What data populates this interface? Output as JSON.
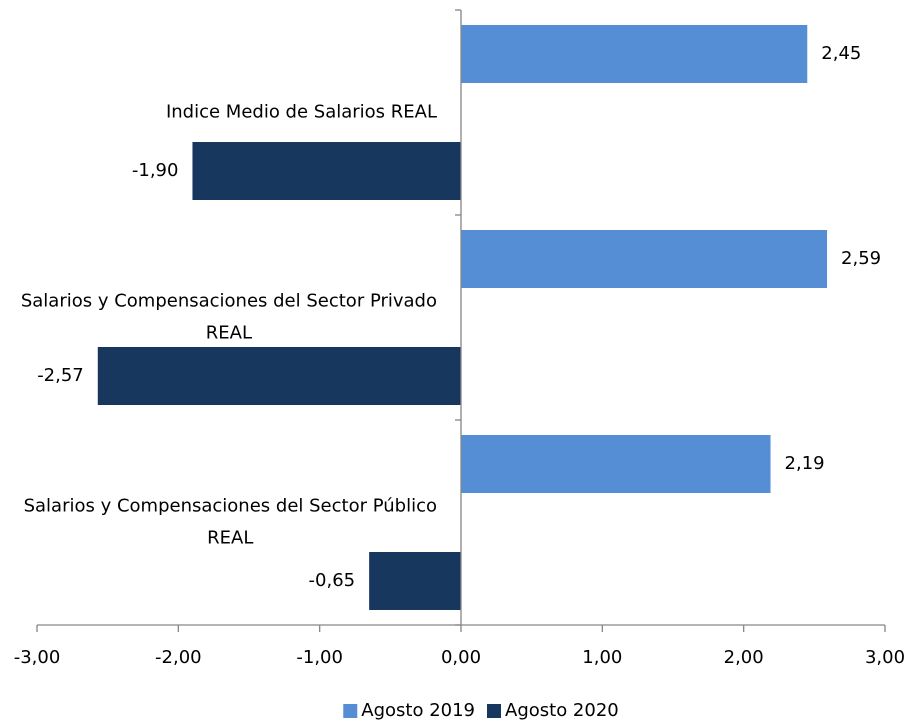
{
  "chart_data": {
    "type": "hbar",
    "categories": [
      "Indice Medio de Salarios REAL",
      "Salarios y Compensaciones del Sector Privado REAL",
      "Salarios y Compensaciones del Sector Público REAL"
    ],
    "series": [
      {
        "name": "Agosto 2019",
        "color": "#558ed5",
        "values": [
          2.45,
          2.59,
          2.19
        ],
        "value_labels": [
          "2,45",
          "2,59",
          "2,19"
        ]
      },
      {
        "name": "Agosto 2020",
        "color": "#17375e",
        "values": [
          -1.9,
          -2.57,
          -0.65
        ],
        "value_labels": [
          "-1,90",
          "-2,57",
          "-0,65"
        ]
      }
    ],
    "xlim": [
      -3,
      3
    ],
    "xticks": [
      {
        "value": -3,
        "label": "-3,00"
      },
      {
        "value": -2,
        "label": "-2,00"
      },
      {
        "value": -1,
        "label": "-1,00"
      },
      {
        "value": 0,
        "label": "0,00"
      },
      {
        "value": 1,
        "label": "1,00"
      },
      {
        "value": 2,
        "label": "2,00"
      },
      {
        "value": 3,
        "label": "3,00"
      }
    ],
    "legend": "bottom"
  }
}
